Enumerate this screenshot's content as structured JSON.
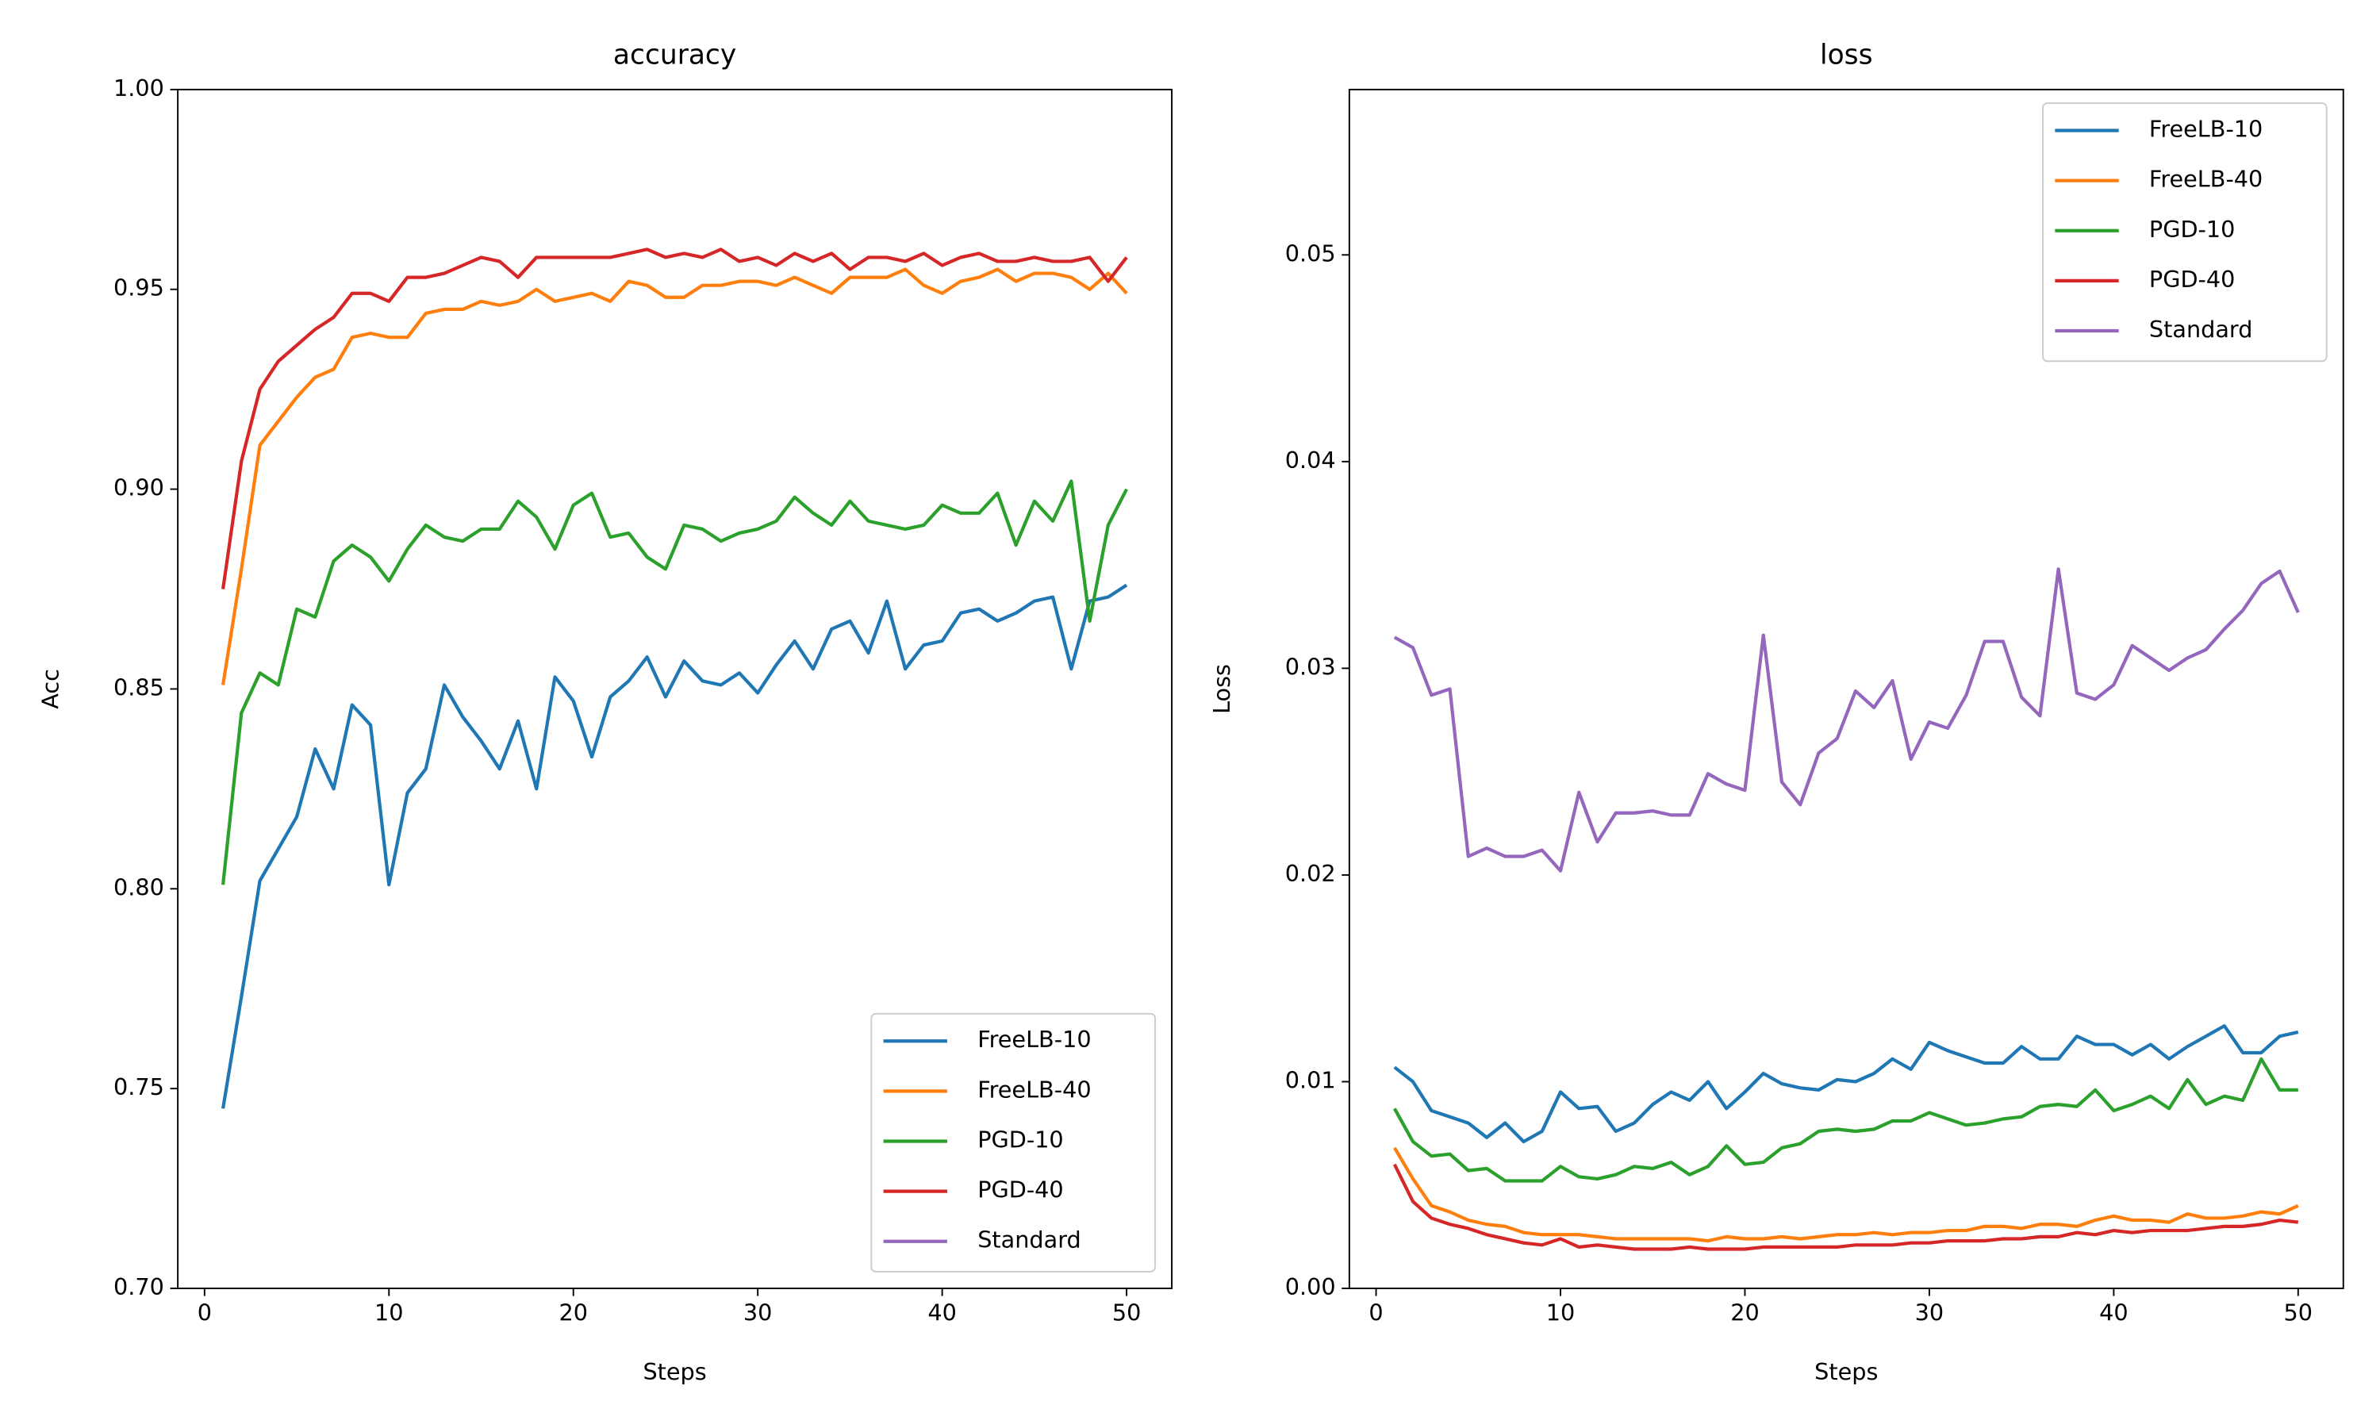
{
  "chart_data": [
    {
      "type": "line",
      "title": "accuracy",
      "x_label": "Steps",
      "y_label": "Acc",
      "legend": "lower right",
      "x": [
        1,
        2,
        3,
        4,
        5,
        6,
        7,
        8,
        9,
        10,
        11,
        12,
        13,
        14,
        15,
        16,
        17,
        18,
        19,
        20,
        21,
        22,
        23,
        24,
        25,
        26,
        27,
        28,
        29,
        30,
        31,
        32,
        33,
        34,
        35,
        36,
        37,
        38,
        39,
        40,
        41,
        42,
        43,
        44,
        45,
        46,
        47,
        48,
        49,
        50
      ],
      "xlim": [
        -1.45,
        52.45
      ],
      "xticks": [
        0,
        10,
        20,
        30,
        40,
        50
      ],
      "ylim": [
        0.7,
        1.0
      ],
      "yticks": [
        {
          "value": 0.7,
          "label": "0.70"
        },
        {
          "value": 0.75,
          "label": "0.75"
        },
        {
          "value": 0.8,
          "label": "0.80"
        },
        {
          "value": 0.85,
          "label": "0.85"
        },
        {
          "value": 0.9,
          "label": "0.90"
        },
        {
          "value": 0.95,
          "label": "0.95"
        },
        {
          "value": 1.0,
          "label": "1.00"
        }
      ],
      "series": [
        {
          "name": "FreeLB-10",
          "color": "#1f77b4",
          "values": [
            0.745,
            0.773,
            0.802,
            0.81,
            0.818,
            0.835,
            0.825,
            0.846,
            0.841,
            0.801,
            0.824,
            0.83,
            0.851,
            0.843,
            0.837,
            0.83,
            0.842,
            0.825,
            0.853,
            0.847,
            0.833,
            0.848,
            0.852,
            0.858,
            0.848,
            0.857,
            0.852,
            0.851,
            0.854,
            0.849,
            0.856,
            0.862,
            0.855,
            0.865,
            0.867,
            0.859,
            0.872,
            0.855,
            0.861,
            0.862,
            0.869,
            0.87,
            0.867,
            0.869,
            0.872,
            0.873,
            0.855,
            0.872,
            0.873,
            0.876
          ]
        },
        {
          "name": "FreeLB-40",
          "color": "#ff7f0e",
          "values": [
            0.851,
            0.88,
            0.911,
            0.917,
            0.923,
            0.928,
            0.93,
            0.938,
            0.939,
            0.938,
            0.938,
            0.944,
            0.945,
            0.945,
            0.947,
            0.946,
            0.947,
            0.95,
            0.947,
            0.948,
            0.949,
            0.947,
            0.952,
            0.951,
            0.948,
            0.948,
            0.951,
            0.951,
            0.952,
            0.952,
            0.951,
            0.953,
            0.951,
            0.949,
            0.953,
            0.953,
            0.953,
            0.955,
            0.951,
            0.949,
            0.952,
            0.953,
            0.955,
            0.952,
            0.954,
            0.954,
            0.953,
            0.95,
            0.954,
            0.949
          ]
        },
        {
          "name": "PGD-10",
          "color": "#2ca02c",
          "values": [
            0.801,
            0.844,
            0.854,
            0.851,
            0.87,
            0.868,
            0.882,
            0.886,
            0.883,
            0.877,
            0.885,
            0.891,
            0.888,
            0.887,
            0.89,
            0.89,
            0.897,
            0.893,
            0.885,
            0.896,
            0.899,
            0.888,
            0.889,
            0.883,
            0.88,
            0.891,
            0.89,
            0.887,
            0.889,
            0.89,
            0.892,
            0.898,
            0.894,
            0.891,
            0.897,
            0.892,
            0.891,
            0.89,
            0.891,
            0.896,
            0.894,
            0.894,
            0.899,
            0.886,
            0.897,
            0.892,
            0.902,
            0.867,
            0.891,
            0.9
          ]
        },
        {
          "name": "PGD-40",
          "color": "#d62728",
          "values": [
            0.875,
            0.907,
            0.925,
            0.932,
            0.936,
            0.94,
            0.943,
            0.949,
            0.949,
            0.947,
            0.953,
            0.953,
            0.954,
            0.956,
            0.958,
            0.957,
            0.953,
            0.958,
            0.958,
            0.958,
            0.958,
            0.958,
            0.959,
            0.96,
            0.958,
            0.959,
            0.958,
            0.96,
            0.957,
            0.958,
            0.956,
            0.959,
            0.957,
            0.959,
            0.955,
            0.958,
            0.958,
            0.957,
            0.959,
            0.956,
            0.958,
            0.959,
            0.957,
            0.957,
            0.958,
            0.957,
            0.957,
            0.958,
            0.952,
            0.958
          ]
        },
        {
          "name": "Standard",
          "color": "#9467bd",
          "values": [
            null,
            null,
            null,
            null,
            null,
            null,
            null,
            null,
            null,
            null,
            null,
            null,
            null,
            null,
            null,
            null,
            null,
            null,
            null,
            null,
            null,
            null,
            null,
            null,
            null,
            null,
            null,
            null,
            null,
            null,
            null,
            null,
            null,
            null,
            null,
            null,
            null,
            null,
            null,
            null,
            null,
            null,
            null,
            null,
            null,
            null,
            null,
            null,
            null,
            null
          ]
        }
      ]
    },
    {
      "type": "line",
      "title": "loss",
      "x_label": "Steps",
      "y_label": "Loss",
      "legend": "upper right",
      "x": [
        1,
        2,
        3,
        4,
        5,
        6,
        7,
        8,
        9,
        10,
        11,
        12,
        13,
        14,
        15,
        16,
        17,
        18,
        19,
        20,
        21,
        22,
        23,
        24,
        25,
        26,
        27,
        28,
        29,
        30,
        31,
        32,
        33,
        34,
        35,
        36,
        37,
        38,
        39,
        40,
        41,
        42,
        43,
        44,
        45,
        46,
        47,
        48,
        49,
        50
      ],
      "xlim": [
        -1.45,
        52.45
      ],
      "xticks": [
        0,
        10,
        20,
        30,
        40,
        50
      ],
      "ylim": [
        0,
        0.058
      ],
      "yticks": [
        {
          "value": 0,
          "label": "0.00"
        },
        {
          "value": 0.01,
          "label": "0.01"
        },
        {
          "value": 0.02,
          "label": "0.02"
        },
        {
          "value": 0.03,
          "label": "0.03"
        },
        {
          "value": 0.04,
          "label": "0.04"
        },
        {
          "value": 0.05,
          "label": "0.05"
        }
      ],
      "series": [
        {
          "name": "FreeLB-10",
          "color": "#1f77b4",
          "values": [
            0.0107,
            0.01,
            0.0086,
            0.0083,
            0.008,
            0.0073,
            0.008,
            0.0071,
            0.0076,
            0.0095,
            0.0087,
            0.0088,
            0.0076,
            0.008,
            0.0089,
            0.0095,
            0.0091,
            0.01,
            0.0087,
            0.0095,
            0.0104,
            0.0099,
            0.0097,
            0.0096,
            0.0101,
            0.01,
            0.0104,
            0.0111,
            0.0106,
            0.0119,
            0.0115,
            0.0112,
            0.0109,
            0.0109,
            0.0117,
            0.0111,
            0.0111,
            0.0122,
            0.0118,
            0.0118,
            0.0113,
            0.0118,
            0.0111,
            0.0117,
            0.0122,
            0.0127,
            0.0114,
            0.0114,
            0.0122,
            0.0124
          ]
        },
        {
          "name": "FreeLB-40",
          "color": "#ff7f0e",
          "values": [
            0.0068,
            0.0053,
            0.004,
            0.0037,
            0.0033,
            0.0031,
            0.003,
            0.0027,
            0.0026,
            0.0026,
            0.0026,
            0.0025,
            0.0024,
            0.0024,
            0.0024,
            0.0024,
            0.0024,
            0.0023,
            0.0025,
            0.0024,
            0.0024,
            0.0025,
            0.0024,
            0.0025,
            0.0026,
            0.0026,
            0.0027,
            0.0026,
            0.0027,
            0.0027,
            0.0028,
            0.0028,
            0.003,
            0.003,
            0.0029,
            0.0031,
            0.0031,
            0.003,
            0.0033,
            0.0035,
            0.0033,
            0.0033,
            0.0032,
            0.0036,
            0.0034,
            0.0034,
            0.0035,
            0.0037,
            0.0036,
            0.004
          ]
        },
        {
          "name": "PGD-10",
          "color": "#2ca02c",
          "values": [
            0.0087,
            0.0071,
            0.0064,
            0.0065,
            0.0057,
            0.0058,
            0.0052,
            0.0052,
            0.0052,
            0.0059,
            0.0054,
            0.0053,
            0.0055,
            0.0059,
            0.0058,
            0.0061,
            0.0055,
            0.0059,
            0.0069,
            0.006,
            0.0061,
            0.0068,
            0.007,
            0.0076,
            0.0077,
            0.0076,
            0.0077,
            0.0081,
            0.0081,
            0.0085,
            0.0082,
            0.0079,
            0.008,
            0.0082,
            0.0083,
            0.0088,
            0.0089,
            0.0088,
            0.0096,
            0.0086,
            0.0089,
            0.0093,
            0.0087,
            0.0101,
            0.0089,
            0.0093,
            0.0091,
            0.0111,
            0.0096,
            0.0096
          ]
        },
        {
          "name": "PGD-40",
          "color": "#d62728",
          "values": [
            0.006,
            0.0042,
            0.0034,
            0.0031,
            0.0029,
            0.0026,
            0.0024,
            0.0022,
            0.0021,
            0.0024,
            0.002,
            0.0021,
            0.002,
            0.0019,
            0.0019,
            0.0019,
            0.002,
            0.0019,
            0.0019,
            0.0019,
            0.002,
            0.002,
            0.002,
            0.002,
            0.002,
            0.0021,
            0.0021,
            0.0021,
            0.0022,
            0.0022,
            0.0023,
            0.0023,
            0.0023,
            0.0024,
            0.0024,
            0.0025,
            0.0025,
            0.0027,
            0.0026,
            0.0028,
            0.0027,
            0.0028,
            0.0028,
            0.0028,
            0.0029,
            0.003,
            0.003,
            0.0031,
            0.0033,
            0.0032
          ]
        },
        {
          "name": "Standard",
          "color": "#9467bd",
          "values": [
            0.0315,
            0.031,
            0.0287,
            0.029,
            0.0209,
            0.0213,
            0.0209,
            0.0209,
            0.0212,
            0.0202,
            0.024,
            0.0216,
            0.023,
            0.023,
            0.0231,
            0.0229,
            0.0229,
            0.0249,
            0.0244,
            0.0241,
            0.0316,
            0.0245,
            0.0234,
            0.0259,
            0.0266,
            0.0289,
            0.0281,
            0.0294,
            0.0256,
            0.0274,
            0.0271,
            0.0287,
            0.0313,
            0.0313,
            0.0286,
            0.0277,
            0.0348,
            0.0288,
            0.0285,
            0.0292,
            0.0311,
            0.0305,
            0.0299,
            0.0305,
            0.0309,
            0.0319,
            0.0328,
            0.0341,
            0.0347,
            0.0327
          ]
        }
      ]
    }
  ]
}
